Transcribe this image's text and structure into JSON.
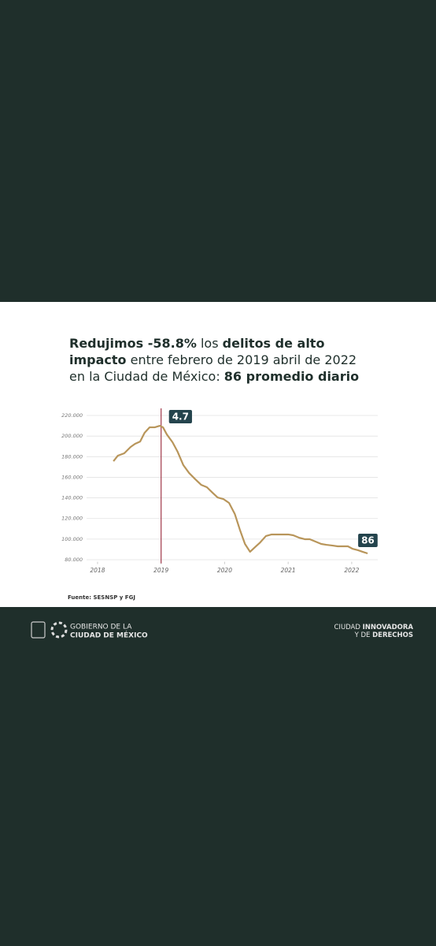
{
  "chart_data": {
    "type": "line",
    "title": [
      {
        "text": "Redujimos -58.8%",
        "bold": true
      },
      {
        "text": " los ",
        "bold": false
      },
      {
        "text": "delitos de alto impacto",
        "bold": true
      },
      {
        "text": " entre febrero de 2019 abril de 2022 en la Ciudad de México: ",
        "bold": false
      },
      {
        "text": "86 promedio diario",
        "bold": true
      }
    ],
    "x": [
      2018.25,
      2018.32,
      2018.42,
      2018.52,
      2018.59,
      2018.67,
      2018.74,
      2018.82,
      2018.9,
      2018.98,
      2019.03,
      2019.09,
      2019.18,
      2019.26,
      2019.35,
      2019.44,
      2019.54,
      2019.63,
      2019.72,
      2019.81,
      2019.89,
      2019.98,
      2020.07,
      2020.16,
      2020.24,
      2020.32,
      2020.4,
      2020.48,
      2020.56,
      2020.65,
      2020.74,
      2020.82,
      2020.91,
      2021.0,
      2021.08,
      2021.17,
      2021.26,
      2021.34,
      2021.43,
      2021.52,
      2021.6,
      2021.69,
      2021.78,
      2021.86,
      2021.94,
      2022.01,
      2022.1,
      2022.17,
      2022.25
    ],
    "series": [
      {
        "color": "#b8955a",
        "values": [
          175600,
          181000,
          183300,
          189400,
          192500,
          194700,
          203200,
          208500,
          208500,
          210000,
          208500,
          201600,
          194000,
          184800,
          171800,
          164200,
          158000,
          152700,
          150400,
          145000,
          140400,
          138900,
          135100,
          124400,
          109100,
          95300,
          87700,
          92300,
          96800,
          103000,
          104500,
          104500,
          104500,
          104500,
          103700,
          101400,
          99900,
          99900,
          97600,
          95300,
          94500,
          93800,
          93000,
          93000,
          93000,
          90700,
          89200,
          87700,
          86100
        ]
      }
    ],
    "xlim": [
      2017.827,
      2022.41
    ],
    "xticks": [
      2018,
      2019,
      2020,
      2021,
      2022
    ],
    "ylim": [
      78000,
      225000
    ],
    "yticks": [
      {
        "value": 80000,
        "label": "80.000"
      },
      {
        "value": 100000,
        "label": "100.000"
      },
      {
        "value": 120000,
        "label": "120.000"
      },
      {
        "value": 140000,
        "label": "140.000"
      },
      {
        "value": 160000,
        "label": "160.000"
      },
      {
        "value": 180000,
        "label": "180.000"
      },
      {
        "value": 200000,
        "label": "200.000"
      },
      {
        "value": 220000,
        "label": "220.000"
      }
    ],
    "grid": true,
    "marker_x": 2019,
    "marker_color": "#a0384a",
    "marker_label": "4.7",
    "end_label": "86",
    "source": "Fuente: SESNSP y FGJ"
  },
  "footer": {
    "left": [
      "GOBIERNO DE LA",
      "CIUDAD DE MÉXICO"
    ],
    "right": [
      [
        {
          "text": "CIUDAD ",
          "bold": false
        },
        {
          "text": "INNOVADORA",
          "bold": true
        }
      ],
      [
        {
          "text": "Y DE ",
          "bold": false
        },
        {
          "text": "DERECHOS",
          "bold": true
        }
      ]
    ]
  }
}
